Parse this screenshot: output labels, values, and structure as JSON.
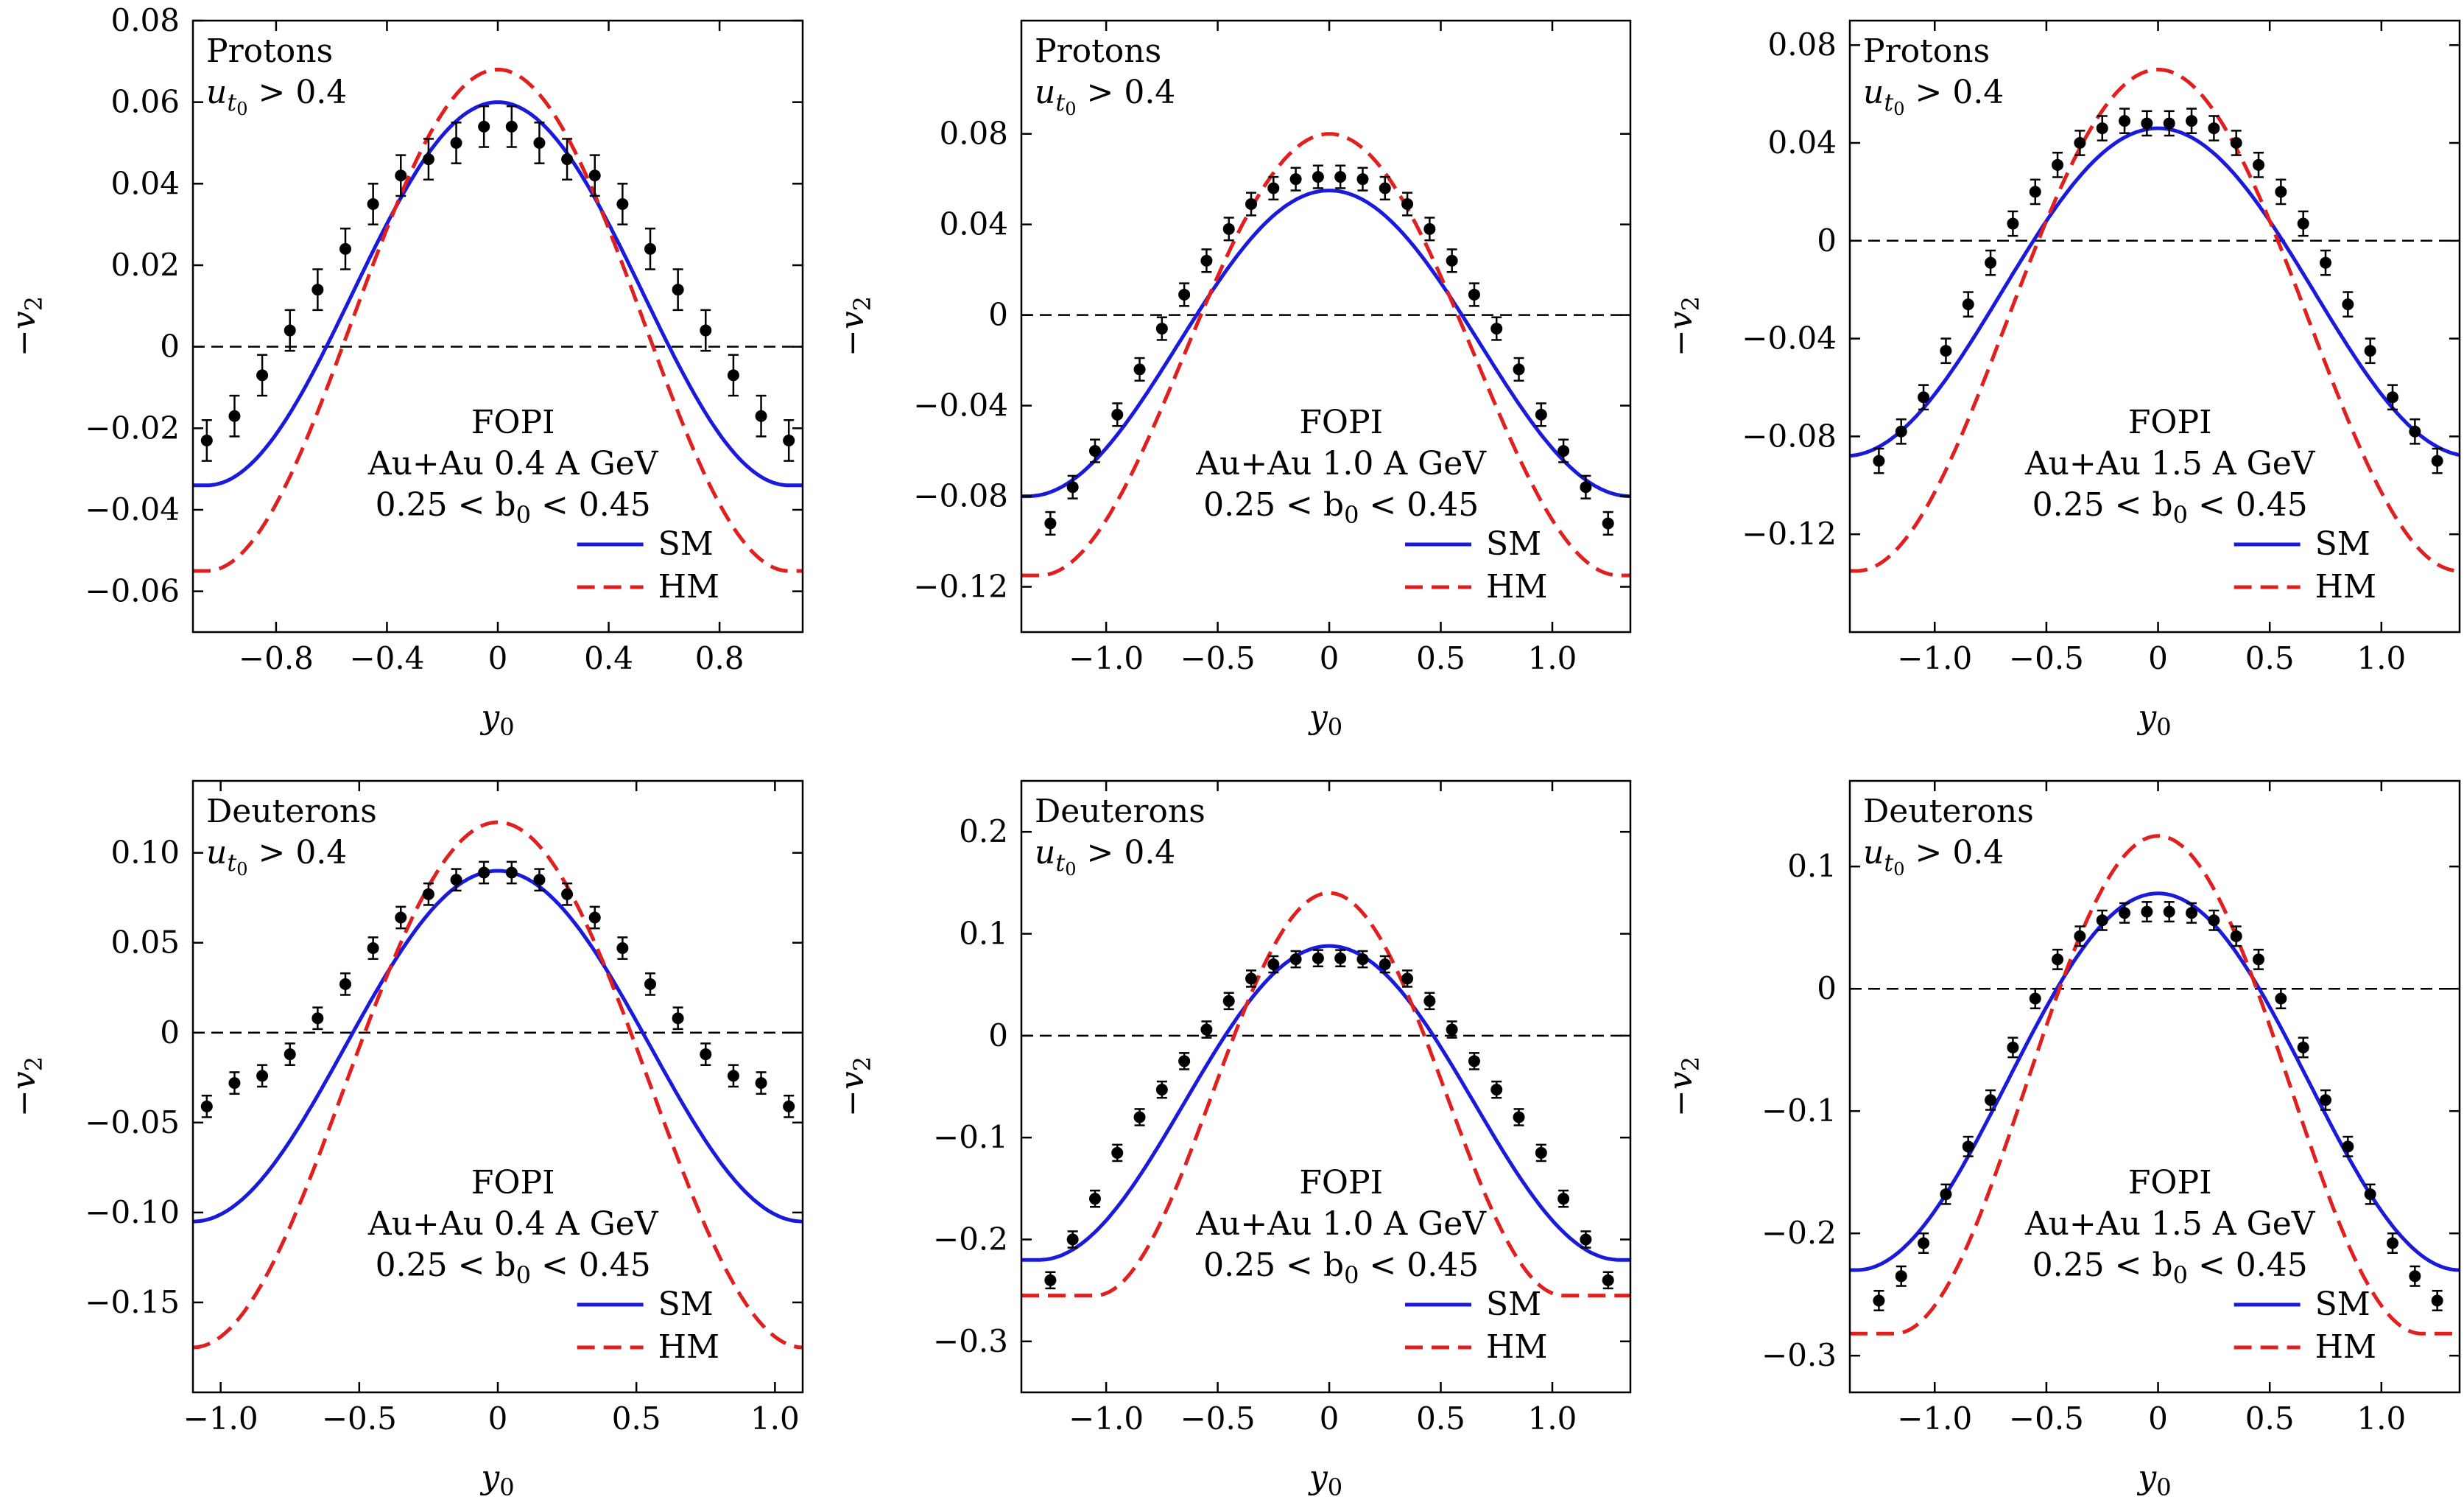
{
  "colors": {
    "sm": "#1a1adb",
    "hm": "#e01f1f",
    "data": "#000000",
    "axis": "#000000"
  },
  "chart_data": [
    {
      "type": "line",
      "particle": "Protons",
      "cut_var": "u",
      "cut_sub": "t",
      "cut_subsub": "0",
      "cut_rest": " > 0.4",
      "exp": "FOPI",
      "system": "Au+Au 0.4 A GeV",
      "bcut_pre": "0.25 < b",
      "bcut_sub": "0",
      "bcut_post": " < 0.45",
      "xlabel_var": "y",
      "xlabel_sub": "0",
      "ylabel_pre": "−v",
      "ylabel_sub": "2",
      "xlim": [
        -1.1,
        1.1
      ],
      "ylim": [
        -0.07,
        0.08
      ],
      "xticks": [
        -0.8,
        -0.4,
        0,
        0.4,
        0.8
      ],
      "xtick_labels": [
        "−0.8",
        "−0.4",
        "0",
        "0.4",
        "0.8"
      ],
      "yticks": [
        -0.06,
        -0.04,
        -0.02,
        0,
        0.02,
        0.04,
        0.06,
        0.08
      ],
      "ytick_labels": [
        "−0.06",
        "−0.04",
        "−0.02",
        "0",
        "0.02",
        "0.04",
        "0.06",
        "0.08"
      ],
      "sm": {
        "A": 0.06,
        "B": -0.034,
        "x0": 1.05
      },
      "hm": {
        "A": 0.068,
        "B": -0.055,
        "x0": 1.05
      },
      "points": {
        "x": [
          -1.05,
          -0.95,
          -0.85,
          -0.75,
          -0.65,
          -0.55,
          -0.45,
          -0.35,
          -0.25,
          -0.15,
          -0.05,
          0.05,
          0.15,
          0.25,
          0.35,
          0.45,
          0.55,
          0.65,
          0.75,
          0.85,
          0.95,
          1.05
        ],
        "y": [
          -0.023,
          -0.017,
          -0.007,
          0.004,
          0.014,
          0.024,
          0.035,
          0.042,
          0.046,
          0.05,
          0.054,
          0.054,
          0.05,
          0.046,
          0.042,
          0.035,
          0.024,
          0.014,
          0.004,
          -0.007,
          -0.017,
          -0.023
        ],
        "err": [
          0.005,
          0.005,
          0.005,
          0.005,
          0.005,
          0.005,
          0.005,
          0.005,
          0.005,
          0.005,
          0.005,
          0.005,
          0.005,
          0.005,
          0.005,
          0.005,
          0.005,
          0.005,
          0.005,
          0.005,
          0.005,
          0.005
        ]
      },
      "legend": [
        "SM",
        "HM"
      ]
    },
    {
      "type": "line",
      "particle": "Protons",
      "cut_var": "u",
      "cut_sub": "t",
      "cut_subsub": "0",
      "cut_rest": " > 0.4",
      "exp": "FOPI",
      "system": "Au+Au 1.0 A GeV",
      "bcut_pre": "0.25 < b",
      "bcut_sub": "0",
      "bcut_post": " < 0.45",
      "xlabel_var": "y",
      "xlabel_sub": "0",
      "ylabel_pre": "−v",
      "ylabel_sub": "2",
      "xlim": [
        -1.38,
        1.35
      ],
      "ylim": [
        -0.14,
        0.13
      ],
      "xticks": [
        -1.0,
        -0.5,
        0,
        0.5,
        1.0
      ],
      "xtick_labels": [
        "−1.0",
        "−0.5",
        "0",
        "0.5",
        "1.0"
      ],
      "yticks": [
        -0.12,
        -0.08,
        -0.04,
        0,
        0.04,
        0.08
      ],
      "ytick_labels": [
        "−0.12",
        "−0.08",
        "−0.04",
        "0",
        "0.04",
        "0.08"
      ],
      "sm": {
        "A": 0.055,
        "B": -0.08,
        "x0": 1.35
      },
      "hm": {
        "A": 0.08,
        "B": -0.115,
        "x0": 1.3
      },
      "points": {
        "x": [
          -1.25,
          -1.15,
          -1.05,
          -0.95,
          -0.85,
          -0.75,
          -0.65,
          -0.55,
          -0.45,
          -0.35,
          -0.25,
          -0.15,
          -0.05,
          0.05,
          0.15,
          0.25,
          0.35,
          0.45,
          0.55,
          0.65,
          0.75,
          0.85,
          0.95,
          1.05,
          1.15,
          1.25
        ],
        "y": [
          -0.092,
          -0.076,
          -0.06,
          -0.044,
          -0.024,
          -0.006,
          0.009,
          0.024,
          0.038,
          0.049,
          0.056,
          0.06,
          0.061,
          0.061,
          0.06,
          0.056,
          0.049,
          0.038,
          0.024,
          0.009,
          -0.006,
          -0.024,
          -0.044,
          -0.06,
          -0.076,
          -0.092
        ],
        "err": [
          0.005,
          0.005,
          0.005,
          0.005,
          0.005,
          0.005,
          0.005,
          0.005,
          0.005,
          0.005,
          0.005,
          0.005,
          0.005,
          0.005,
          0.005,
          0.005,
          0.005,
          0.005,
          0.005,
          0.005,
          0.005,
          0.005,
          0.005,
          0.005,
          0.005,
          0.005
        ]
      },
      "legend": [
        "SM",
        "HM"
      ]
    },
    {
      "type": "line",
      "particle": "Protons",
      "cut_var": "u",
      "cut_sub": "t",
      "cut_subsub": "0",
      "cut_rest": " > 0.4",
      "exp": "FOPI",
      "system": "Au+Au 1.5 A GeV",
      "bcut_pre": "0.25 < b",
      "bcut_sub": "0",
      "bcut_post": " < 0.45",
      "xlabel_var": "y",
      "xlabel_sub": "0",
      "ylabel_pre": "−v",
      "ylabel_sub": "2",
      "xlim": [
        -1.38,
        1.35
      ],
      "ylim": [
        -0.16,
        0.09
      ],
      "xticks": [
        -1.0,
        -0.5,
        0,
        0.5,
        1.0
      ],
      "xtick_labels": [
        "−1.0",
        "−0.5",
        "0",
        "0.5",
        "1.0"
      ],
      "yticks": [
        -0.12,
        -0.08,
        -0.04,
        0,
        0.04,
        0.08
      ],
      "ytick_labels": [
        "−0.12",
        "−0.08",
        "−0.04",
        "0",
        "0.04",
        "0.08"
      ],
      "sm": {
        "A": 0.046,
        "B": -0.088,
        "x0": 1.4
      },
      "hm": {
        "A": 0.07,
        "B": -0.135,
        "x0": 1.35
      },
      "points": {
        "x": [
          -1.25,
          -1.15,
          -1.05,
          -0.95,
          -0.85,
          -0.75,
          -0.65,
          -0.55,
          -0.45,
          -0.35,
          -0.25,
          -0.15,
          -0.05,
          0.05,
          0.15,
          0.25,
          0.35,
          0.45,
          0.55,
          0.65,
          0.75,
          0.85,
          0.95,
          1.05,
          1.15,
          1.25
        ],
        "y": [
          -0.09,
          -0.078,
          -0.064,
          -0.045,
          -0.026,
          -0.009,
          0.007,
          0.02,
          0.031,
          0.04,
          0.046,
          0.049,
          0.048,
          0.048,
          0.049,
          0.046,
          0.04,
          0.031,
          0.02,
          0.007,
          -0.009,
          -0.026,
          -0.045,
          -0.064,
          -0.078,
          -0.09
        ],
        "err": [
          0.005,
          0.005,
          0.005,
          0.005,
          0.005,
          0.005,
          0.005,
          0.005,
          0.005,
          0.005,
          0.005,
          0.005,
          0.005,
          0.005,
          0.005,
          0.005,
          0.005,
          0.005,
          0.005,
          0.005,
          0.005,
          0.005,
          0.005,
          0.005,
          0.005,
          0.005
        ]
      },
      "legend": [
        "SM",
        "HM"
      ]
    },
    {
      "type": "line",
      "particle": "Deuterons",
      "cut_var": "u",
      "cut_sub": "t",
      "cut_subsub": "0",
      "cut_rest": " > 0.4",
      "exp": "FOPI",
      "system": "Au+Au 0.4 A GeV",
      "bcut_pre": "0.25 < b",
      "bcut_sub": "0",
      "bcut_post": " < 0.45",
      "xlabel_var": "y",
      "xlabel_sub": "0",
      "ylabel_pre": "−v",
      "ylabel_sub": "2",
      "xlim": [
        -1.1,
        1.1
      ],
      "ylim": [
        -0.2,
        0.14
      ],
      "xticks": [
        -1.0,
        -0.5,
        0,
        0.5,
        1.0
      ],
      "xtick_labels": [
        "−1.0",
        "−0.5",
        "0",
        "0.5",
        "1.0"
      ],
      "yticks": [
        -0.15,
        -0.1,
        -0.05,
        0,
        0.05,
        0.1
      ],
      "ytick_labels": [
        "−0.15",
        "−0.10",
        "−0.05",
        "0",
        "0.05",
        "0.10"
      ],
      "sm": {
        "A": 0.09,
        "B": -0.105,
        "x0": 1.1
      },
      "hm": {
        "A": 0.117,
        "B": -0.175,
        "x0": 1.1
      },
      "points": {
        "x": [
          -1.05,
          -0.95,
          -0.85,
          -0.75,
          -0.65,
          -0.55,
          -0.45,
          -0.35,
          -0.25,
          -0.15,
          -0.05,
          0.05,
          0.15,
          0.25,
          0.35,
          0.45,
          0.55,
          0.65,
          0.75,
          0.85,
          0.95,
          1.05
        ],
        "y": [
          -0.041,
          -0.028,
          -0.024,
          -0.012,
          0.008,
          0.027,
          0.047,
          0.064,
          0.077,
          0.085,
          0.089,
          0.089,
          0.085,
          0.077,
          0.064,
          0.047,
          0.027,
          0.008,
          -0.012,
          -0.024,
          -0.028,
          -0.041
        ],
        "err": [
          0.006,
          0.006,
          0.006,
          0.006,
          0.006,
          0.006,
          0.006,
          0.006,
          0.006,
          0.006,
          0.006,
          0.006,
          0.006,
          0.006,
          0.006,
          0.006,
          0.006,
          0.006,
          0.006,
          0.006,
          0.006,
          0.006
        ]
      },
      "legend": [
        "SM",
        "HM"
      ]
    },
    {
      "type": "line",
      "particle": "Deuterons",
      "cut_var": "u",
      "cut_sub": "t",
      "cut_subsub": "0",
      "cut_rest": " > 0.4",
      "exp": "FOPI",
      "system": "Au+Au 1.0 A GeV",
      "bcut_pre": "0.25 < b",
      "bcut_sub": "0",
      "bcut_post": " < 0.45",
      "xlabel_var": "y",
      "xlabel_sub": "0",
      "ylabel_pre": "−v",
      "ylabel_sub": "2",
      "xlim": [
        -1.38,
        1.35
      ],
      "ylim": [
        -0.35,
        0.25
      ],
      "xticks": [
        -1.0,
        -0.5,
        0,
        0.5,
        1.0
      ],
      "xtick_labels": [
        "−1.0",
        "−0.5",
        "0",
        "0.5",
        "1.0"
      ],
      "yticks": [
        -0.3,
        -0.2,
        -0.1,
        0,
        0.1,
        0.2
      ],
      "ytick_labels": [
        "−0.3",
        "−0.2",
        "−0.1",
        "0",
        "0.1",
        "0.2"
      ],
      "sm": {
        "A": 0.088,
        "B": -0.22,
        "x0": 1.3
      },
      "hm": {
        "A": 0.14,
        "B": -0.255,
        "x0": 1.05
      },
      "points": {
        "x": [
          -1.25,
          -1.15,
          -1.05,
          -0.95,
          -0.85,
          -0.75,
          -0.65,
          -0.55,
          -0.45,
          -0.35,
          -0.25,
          -0.15,
          -0.05,
          0.05,
          0.15,
          0.25,
          0.35,
          0.45,
          0.55,
          0.65,
          0.75,
          0.85,
          0.95,
          1.05,
          1.15,
          1.25
        ],
        "y": [
          -0.24,
          -0.2,
          -0.16,
          -0.115,
          -0.08,
          -0.053,
          -0.025,
          0.006,
          0.034,
          0.056,
          0.07,
          0.075,
          0.076,
          0.076,
          0.075,
          0.07,
          0.056,
          0.034,
          0.006,
          -0.025,
          -0.053,
          -0.08,
          -0.115,
          -0.16,
          -0.2,
          -0.24
        ],
        "err": [
          0.008,
          0.008,
          0.008,
          0.008,
          0.008,
          0.008,
          0.008,
          0.008,
          0.008,
          0.008,
          0.008,
          0.008,
          0.008,
          0.008,
          0.008,
          0.008,
          0.008,
          0.008,
          0.008,
          0.008,
          0.008,
          0.008,
          0.008,
          0.008,
          0.008,
          0.008
        ]
      },
      "legend": [
        "SM",
        "HM"
      ]
    },
    {
      "type": "line",
      "particle": "Deuterons",
      "cut_var": "u",
      "cut_sub": "t",
      "cut_subsub": "0",
      "cut_rest": " > 0.4",
      "exp": "FOPI",
      "system": "Au+Au 1.5 A GeV",
      "bcut_pre": "0.25 < b",
      "bcut_sub": "0",
      "bcut_post": " < 0.45",
      "xlabel_var": "y",
      "xlabel_sub": "0",
      "ylabel_pre": "−v",
      "ylabel_sub": "2",
      "xlim": [
        -1.38,
        1.35
      ],
      "ylim": [
        -0.33,
        0.17
      ],
      "xticks": [
        -1.0,
        -0.5,
        0,
        0.5,
        1.0
      ],
      "xtick_labels": [
        "−1.0",
        "−0.5",
        "0",
        "0.5",
        "1.0"
      ],
      "yticks": [
        -0.3,
        -0.2,
        -0.1,
        0,
        0.1
      ],
      "ytick_labels": [
        "−0.3",
        "−0.2",
        "−0.1",
        "0",
        "0.1"
      ],
      "sm": {
        "A": 0.078,
        "B": -0.23,
        "x0": 1.35
      },
      "hm": {
        "A": 0.125,
        "B": -0.282,
        "x0": 1.18
      },
      "points": {
        "x": [
          -1.25,
          -1.15,
          -1.05,
          -0.95,
          -0.85,
          -0.75,
          -0.65,
          -0.55,
          -0.45,
          -0.35,
          -0.25,
          -0.15,
          -0.05,
          0.05,
          0.15,
          0.25,
          0.35,
          0.45,
          0.55,
          0.65,
          0.75,
          0.85,
          0.95,
          1.05,
          1.15,
          1.25
        ],
        "y": [
          -0.255,
          -0.235,
          -0.208,
          -0.168,
          -0.129,
          -0.091,
          -0.048,
          -0.008,
          0.024,
          0.043,
          0.056,
          0.062,
          0.063,
          0.063,
          0.062,
          0.056,
          0.043,
          0.024,
          -0.008,
          -0.048,
          -0.091,
          -0.129,
          -0.168,
          -0.208,
          -0.235,
          -0.255
        ],
        "err": [
          0.008,
          0.008,
          0.008,
          0.008,
          0.008,
          0.008,
          0.008,
          0.008,
          0.008,
          0.008,
          0.008,
          0.008,
          0.008,
          0.008,
          0.008,
          0.008,
          0.008,
          0.008,
          0.008,
          0.008,
          0.008,
          0.008,
          0.008,
          0.008,
          0.008,
          0.008
        ]
      },
      "legend": [
        "SM",
        "HM"
      ]
    }
  ]
}
